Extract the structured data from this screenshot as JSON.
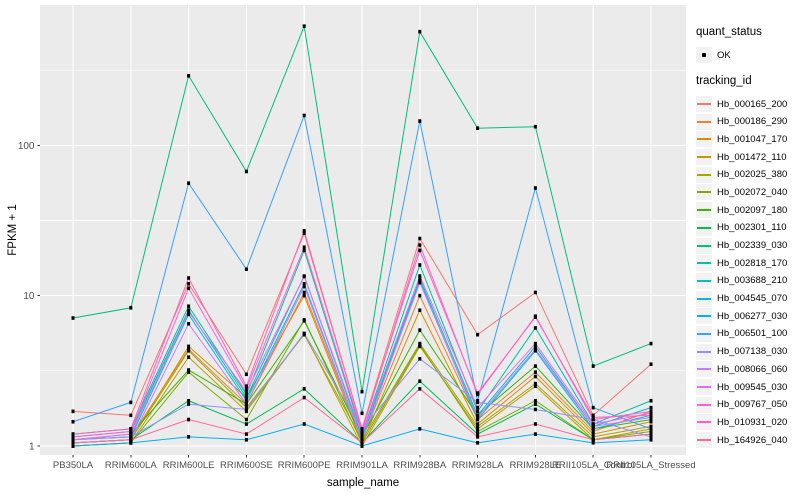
{
  "figure": {
    "panel_bg": "#EBEBEB",
    "grid_color": "#FFFFFF",
    "tick_color": "#333333",
    "tick_label_color": "#4D4D4D",
    "point_color": "#000000"
  },
  "legend": {
    "quant_status": {
      "title": "quant_status",
      "items": [
        {
          "label": "OK",
          "color": "#000000"
        }
      ]
    },
    "tracking": {
      "title": "tracking_id"
    }
  },
  "chart_data": {
    "type": "line",
    "title": "",
    "xlabel": "sample_name",
    "ylabel": "FPKM + 1",
    "y_scale": "log10",
    "ylim": [
      1,
      860
    ],
    "y_ticks": [
      1,
      10,
      100
    ],
    "y_minor_ticks": [
      3.1623,
      31.623,
      316.23
    ],
    "grid": true,
    "legend_position": "right",
    "categories": [
      "PB350LA",
      "RRIM600LA",
      "RRIM600LE",
      "RRIM600SE",
      "RRIM600PE",
      "RRIM901LA",
      "RRIM928BA",
      "RRIM928LA",
      "RRIM928LE",
      "RRII105LA_Control",
      "RRII105LA_Stressed"
    ],
    "series": [
      {
        "name": "Hb_000165_200",
        "color": "#F8766D",
        "values": [
          1.7,
          1.6,
          12,
          3.0,
          26,
          1.3,
          24,
          5.5,
          10.5,
          1.6,
          3.5
        ]
      },
      {
        "name": "Hb_000186_290",
        "color": "#EA8331",
        "values": [
          1.1,
          1.15,
          4.4,
          1.9,
          10.5,
          1.1,
          10,
          1.5,
          3.1,
          1.25,
          1.7
        ]
      },
      {
        "name": "Hb_001047_170",
        "color": "#D89000",
        "values": [
          1.05,
          1.1,
          4.6,
          2.1,
          10,
          1.05,
          8,
          1.4,
          2.9,
          1.2,
          1.45
        ]
      },
      {
        "name": "Hb_001472_110",
        "color": "#C09B00",
        "values": [
          1.0,
          1.05,
          3.9,
          1.7,
          5.6,
          1.0,
          4.6,
          1.3,
          2.5,
          1.1,
          1.3
        ]
      },
      {
        "name": "Hb_002025_380",
        "color": "#A3A500",
        "values": [
          1.05,
          1.1,
          4.3,
          1.8,
          5.5,
          1.1,
          4.8,
          1.35,
          2.6,
          1.15,
          1.35
        ]
      },
      {
        "name": "Hb_002072_040",
        "color": "#7CAE00",
        "values": [
          1.0,
          1.05,
          3.1,
          1.5,
          6.9,
          1.05,
          4.7,
          1.25,
          2.0,
          1.1,
          1.25
        ]
      },
      {
        "name": "Hb_002097_180",
        "color": "#39B600",
        "values": [
          1.1,
          1.2,
          3.2,
          1.9,
          6.8,
          1.15,
          5.9,
          1.6,
          3.4,
          1.3,
          1.5
        ]
      },
      {
        "name": "Hb_002301_110",
        "color": "#00BB4E",
        "values": [
          1.05,
          1.1,
          2.0,
          1.4,
          2.4,
          1.05,
          2.7,
          1.2,
          1.9,
          1.1,
          1.2
        ]
      },
      {
        "name": "Hb_002339_030",
        "color": "#00BF7D",
        "values": [
          7.1,
          8.3,
          290,
          67,
          620,
          2.3,
          570,
          130,
          133,
          3.4,
          4.8
        ]
      },
      {
        "name": "Hb_002818_170",
        "color": "#00C1A3",
        "values": [
          1.2,
          1.3,
          8.5,
          2.2,
          20,
          1.2,
          16,
          1.7,
          6.1,
          1.4,
          2.0
        ]
      },
      {
        "name": "Hb_003688_210",
        "color": "#00BFC4",
        "values": [
          1.15,
          1.25,
          8.0,
          2.1,
          13.5,
          1.15,
          13,
          1.6,
          4.6,
          1.35,
          1.8
        ]
      },
      {
        "name": "Hb_004545_070",
        "color": "#00BAE0",
        "values": [
          1.1,
          1.15,
          7.5,
          2.0,
          12,
          1.1,
          12.5,
          1.5,
          4.3,
          1.3,
          1.6
        ]
      },
      {
        "name": "Hb_006277_030",
        "color": "#00B0F6",
        "values": [
          1.0,
          1.05,
          1.15,
          1.1,
          1.4,
          1.0,
          1.3,
          1.05,
          1.2,
          1.05,
          1.1
        ]
      },
      {
        "name": "Hb_006501_100",
        "color": "#35A2FF",
        "values": [
          1.45,
          1.95,
          56,
          15,
          158,
          1.65,
          145,
          2.0,
          52,
          1.8,
          1.3
        ]
      },
      {
        "name": "Hb_007138_030",
        "color": "#9590FF",
        "values": [
          1.1,
          1.15,
          1.9,
          1.75,
          5.6,
          1.3,
          3.8,
          1.95,
          1.75,
          1.5,
          1.15
        ]
      },
      {
        "name": "Hb_008066_060",
        "color": "#C77CFF",
        "values": [
          1.05,
          1.1,
          6.5,
          1.9,
          11.5,
          1.1,
          12.2,
          1.55,
          4.4,
          1.35,
          1.55
        ]
      },
      {
        "name": "Hb_009545_030",
        "color": "#E76BF3",
        "values": [
          1.1,
          1.2,
          7.8,
          2.3,
          13.4,
          1.2,
          13.5,
          1.8,
          4.8,
          1.4,
          1.65
        ]
      },
      {
        "name": "Hb_009767_050",
        "color": "#FA62DB",
        "values": [
          1.15,
          1.25,
          11.2,
          2.4,
          21,
          1.25,
          21.7,
          2.2,
          7.3,
          1.5,
          1.7
        ]
      },
      {
        "name": "Hb_010931_020",
        "color": "#FF62BC",
        "values": [
          1.2,
          1.3,
          13.1,
          2.5,
          27,
          1.3,
          20,
          2.25,
          7.2,
          1.55,
          1.6
        ]
      },
      {
        "name": "Hb_164926_040",
        "color": "#FF6A98",
        "values": [
          1.05,
          1.1,
          1.5,
          1.2,
          2.1,
          1.05,
          2.4,
          1.15,
          1.4,
          1.1,
          1.2
        ]
      }
    ]
  }
}
